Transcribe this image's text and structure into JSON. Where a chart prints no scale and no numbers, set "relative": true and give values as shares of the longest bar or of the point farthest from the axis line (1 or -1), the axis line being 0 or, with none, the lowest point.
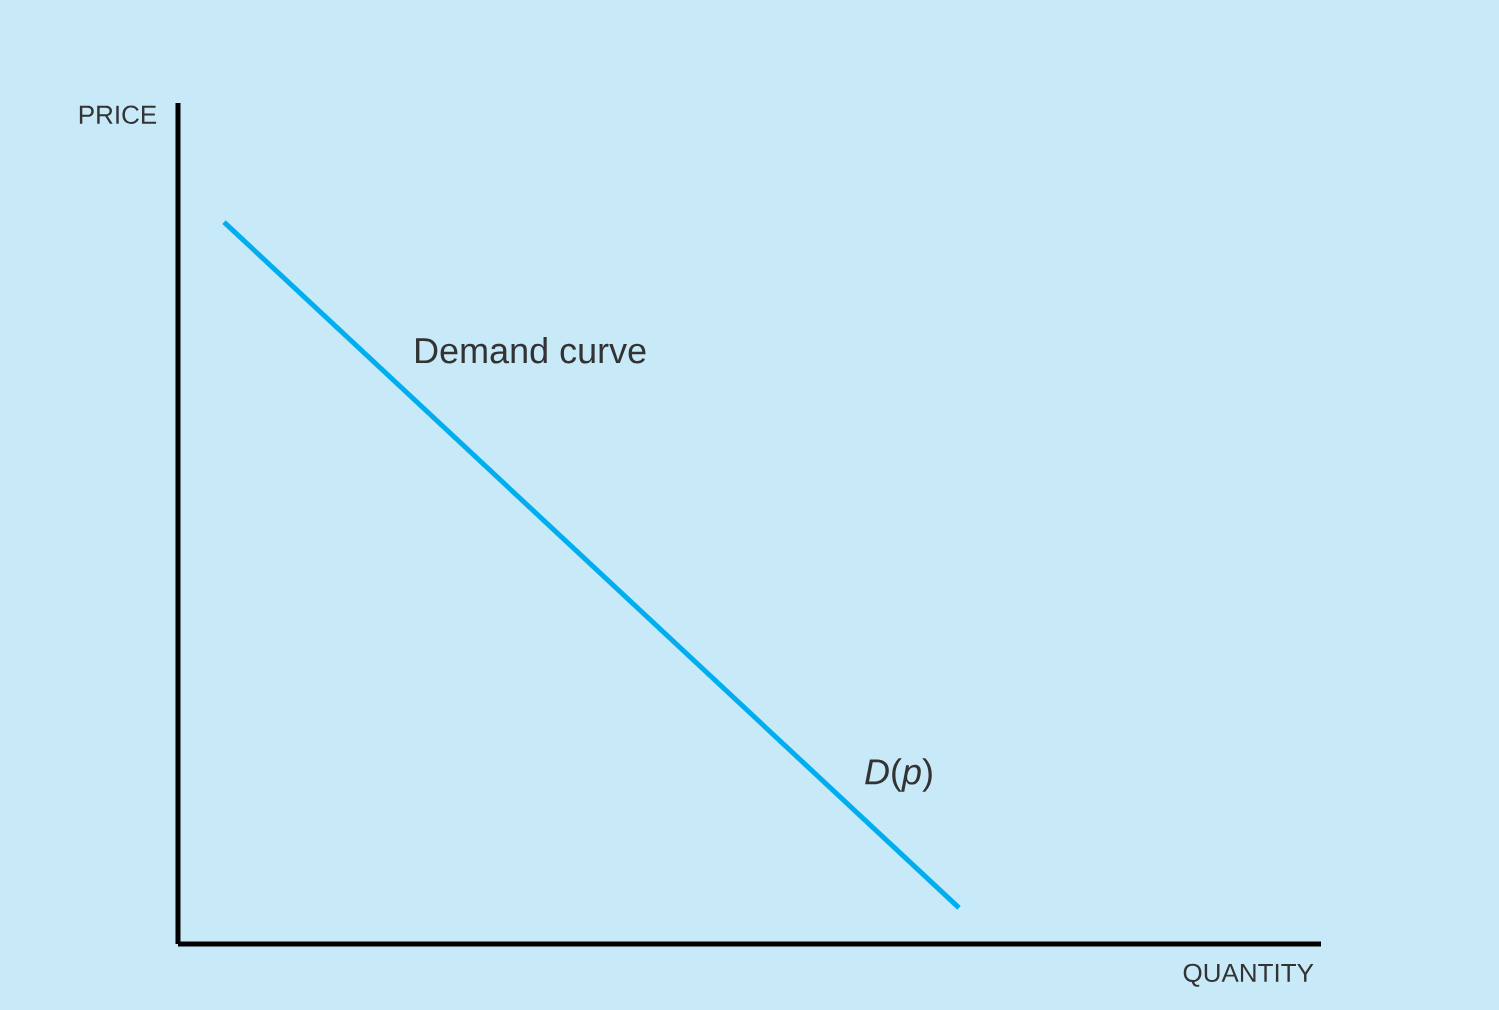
{
  "chart_data": {
    "type": "line",
    "relative": true,
    "xlabel": "QUANTITY",
    "ylabel": "PRICE",
    "categories": [
      null,
      null
    ],
    "values": [
      1,
      0.05
    ],
    "color": "#00aeef",
    "annotations": [
      "Demand curve",
      "*D*(*p*)"
    ]
  }
}
